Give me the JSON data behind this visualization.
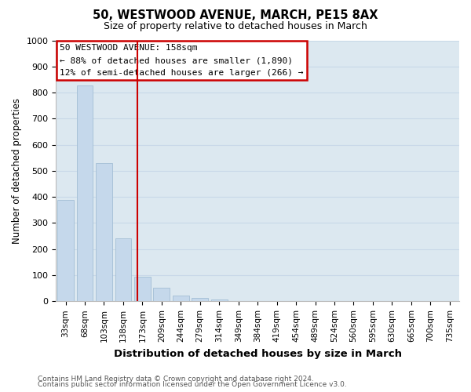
{
  "title": "50, WESTWOOD AVENUE, MARCH, PE15 8AX",
  "subtitle": "Size of property relative to detached houses in March",
  "xlabel": "Distribution of detached houses by size in March",
  "ylabel": "Number of detached properties",
  "bar_labels": [
    "33sqm",
    "68sqm",
    "103sqm",
    "138sqm",
    "173sqm",
    "209sqm",
    "244sqm",
    "279sqm",
    "314sqm",
    "349sqm",
    "384sqm",
    "419sqm",
    "454sqm",
    "489sqm",
    "524sqm",
    "560sqm",
    "595sqm",
    "630sqm",
    "665sqm",
    "700sqm",
    "735sqm"
  ],
  "bar_values": [
    390,
    828,
    530,
    240,
    95,
    52,
    22,
    12,
    8,
    0,
    0,
    0,
    0,
    0,
    0,
    0,
    0,
    0,
    0,
    0,
    0
  ],
  "bar_color": "#c5d8eb",
  "ylim": [
    0,
    1000
  ],
  "yticks": [
    0,
    100,
    200,
    300,
    400,
    500,
    600,
    700,
    800,
    900,
    1000
  ],
  "annotation_title": "50 WESTWOOD AVENUE: 158sqm",
  "annotation_line1": "← 88% of detached houses are smaller (1,890)",
  "annotation_line2": "12% of semi-detached houses are larger (266) →",
  "annotation_box_facecolor": "#ffffff",
  "annotation_box_edgecolor": "#cc0000",
  "vline_color": "#cc0000",
  "vline_x": 3.72,
  "grid_color": "#c8d8e8",
  "plot_bg_color": "#dce8f0",
  "fig_bg_color": "#ffffff",
  "footnote1": "Contains HM Land Registry data © Crown copyright and database right 2024.",
  "footnote2": "Contains public sector information licensed under the Open Government Licence v3.0."
}
